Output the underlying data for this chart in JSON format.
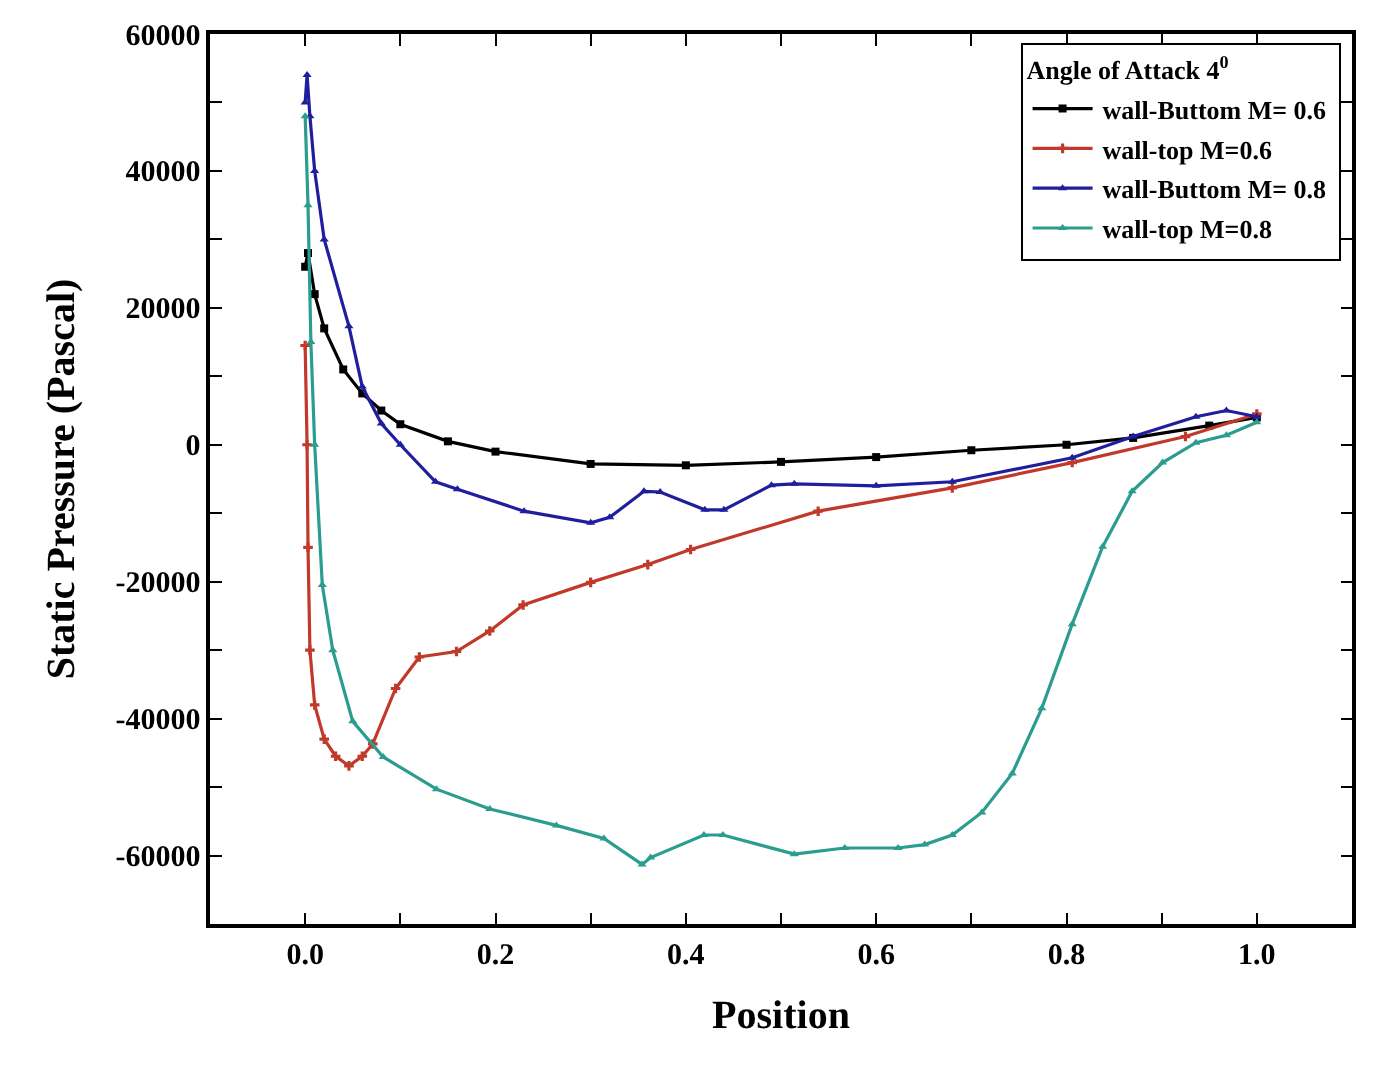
{
  "chart_data": {
    "type": "line",
    "xlabel": "Position",
    "ylabel": "Static Pressure (Pascal)",
    "legend_title": "Angle of Attack 4$^{0}$",
    "xlim": [
      -0.1,
      1.1
    ],
    "ylim": [
      -70000,
      60000
    ],
    "xticks": [
      {
        "value": 0,
        "label": "0.0"
      },
      {
        "value": 0.1,
        "label": null
      },
      {
        "value": 0.2,
        "label": "0.2"
      },
      {
        "value": 0.3,
        "label": null
      },
      {
        "value": 0.4,
        "label": "0.4"
      },
      {
        "value": 0.5,
        "label": null
      },
      {
        "value": 0.6,
        "label": "0.6"
      },
      {
        "value": 0.7,
        "label": null
      },
      {
        "value": 0.8,
        "label": "0.8"
      },
      {
        "value": 0.9,
        "label": null
      },
      {
        "value": 1,
        "label": "1.0"
      }
    ],
    "yticks": [
      -60000,
      {
        "value": -50000,
        "label": null
      },
      -40000,
      {
        "value": -30000,
        "label": null
      },
      -20000,
      {
        "value": -10000,
        "label": null
      },
      0,
      {
        "value": 10000,
        "label": null
      },
      20000,
      {
        "value": 30000,
        "label": null
      },
      40000,
      {
        "value": 50000,
        "label": null
      },
      60000
    ],
    "legend": "top right",
    "line_style": "solid",
    "series": [
      {
        "name": "wall-Buttom M= 0.6",
        "color": "#000000",
        "marker": "square",
        "x": [
          0,
          0.003,
          0.01,
          0.02,
          0.04,
          0.06,
          0.08,
          0.1,
          0.15,
          0.2,
          0.3,
          0.4,
          0.5,
          0.6,
          0.7,
          0.8,
          0.87,
          0.95,
          1.0
        ],
        "values": [
          26000,
          28000,
          22000,
          17000,
          11000,
          7500,
          5000,
          3000,
          500,
          -1000,
          -2800,
          -3000,
          -2500,
          -1800,
          -800,
          0,
          1000,
          2800,
          4000
        ]
      },
      {
        "name": "wall-top M=0.6",
        "color": "#c0392b",
        "marker": "cross",
        "x": [
          0,
          0.002,
          0.003,
          0.005,
          0.01,
          0.02,
          0.032,
          0.046,
          0.06,
          0.071,
          0.095,
          0.12,
          0.159,
          0.194,
          0.229,
          0.3,
          0.36,
          0.405,
          0.539,
          0.68,
          0.806,
          0.925,
          1.0
        ],
        "values": [
          14500,
          0,
          -15000,
          -30000,
          -38000,
          -43000,
          -45500,
          -46900,
          -45500,
          -43700,
          -35600,
          -31000,
          -30200,
          -27200,
          -23400,
          -20100,
          -17500,
          -15300,
          -9700,
          -6300,
          -2600,
          1200,
          4500
        ]
      },
      {
        "name": "wall-Buttom M= 0.8",
        "color": "#1f1f9e",
        "marker": "triangle",
        "x": [
          0,
          0.002,
          0.005,
          0.01,
          0.02,
          0.046,
          0.06,
          0.08,
          0.1,
          0.137,
          0.16,
          0.23,
          0.3,
          0.32,
          0.356,
          0.373,
          0.42,
          0.44,
          0.49,
          0.514,
          0.6,
          0.68,
          0.806,
          0.87,
          0.936,
          0.968,
          1.0
        ],
        "values": [
          50000,
          54000,
          48000,
          40000,
          30000,
          17300,
          8500,
          3100,
          0,
          -5400,
          -6500,
          -9700,
          -11400,
          -10600,
          -6800,
          -6900,
          -9500,
          -9500,
          -5900,
          -5700,
          -6000,
          -5400,
          -1900,
          1200,
          4100,
          5000,
          4100
        ]
      },
      {
        "name": "wall-top M=0.8",
        "color": "#2a9d8f",
        "marker": "triangle",
        "x": [
          0,
          0.003,
          0.006,
          0.01,
          0.018,
          0.029,
          0.05,
          0.082,
          0.138,
          0.194,
          0.264,
          0.314,
          0.354,
          0.363,
          0.419,
          0.439,
          0.514,
          0.567,
          0.623,
          0.651,
          0.68,
          0.711,
          0.743,
          0.774,
          0.806,
          0.838,
          0.869,
          0.901,
          0.936,
          0.968,
          1.0
        ],
        "values": [
          48000,
          35000,
          15000,
          0,
          -20500,
          -30000,
          -40400,
          -45600,
          -50300,
          -53200,
          -55600,
          -57500,
          -61300,
          -60300,
          -57000,
          -57000,
          -59800,
          -58900,
          -58900,
          -58400,
          -57000,
          -53700,
          -48000,
          -38500,
          -26200,
          -14900,
          -6800,
          -2600,
          300,
          1400,
          3300
        ]
      }
    ]
  }
}
